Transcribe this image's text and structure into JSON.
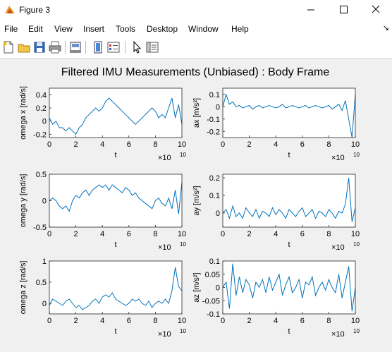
{
  "window": {
    "title": "Figure 3"
  },
  "menu": [
    "File",
    "Edit",
    "View",
    "Insert",
    "Tools",
    "Desktop",
    "Window",
    "Help"
  ],
  "toolbar": {
    "icons": [
      "new-figure-icon",
      "open-file-icon",
      "save-icon",
      "print-icon",
      "print-preview-icon",
      "link-plot-icon",
      "insert-legend-icon",
      "edit-plot-arrow-icon",
      "property-inspector-icon"
    ]
  },
  "colors": {
    "line": "#0072bd",
    "axes_bg": "#ffffff",
    "figure_bg": "#f0f0f0"
  },
  "figure": {
    "title": "Filtered IMU Measurements (Unbiased) : Body Frame"
  },
  "chart_data": [
    {
      "type": "line",
      "xlabel": "t",
      "ylabel": "omega x [rad/s]",
      "xlim": [
        0,
        100000000000
      ],
      "ylim": [
        -0.25,
        0.5
      ],
      "xticks": [
        "0",
        "2",
        "4",
        "6",
        "8",
        "10"
      ],
      "yticks": [
        "-0.2",
        "0",
        "0.2",
        "0.4"
      ],
      "ytick_values": [
        -0.2,
        0,
        0.2,
        0.4
      ],
      "x_exponent": "×10",
      "x_exponent_power": "10",
      "x": [
        0,
        2500000000,
        5000000000,
        7500000000,
        10000000000,
        12500000000,
        15000000000,
        17500000000,
        20000000000,
        22500000000,
        25000000000,
        27500000000,
        30000000000,
        32500000000,
        35000000000,
        37500000000,
        40000000000,
        42500000000,
        45000000000,
        47500000000,
        50000000000,
        52500000000,
        55000000000,
        57500000000,
        60000000000,
        62500000000,
        65000000000,
        67500000000,
        70000000000,
        72500000000,
        75000000000,
        77500000000,
        80000000000,
        82500000000,
        85000000000,
        87500000000,
        90000000000,
        92500000000,
        95000000000,
        97500000000,
        100000000000
      ],
      "y": [
        0.05,
        -0.05,
        0.0,
        -0.1,
        -0.1,
        -0.15,
        -0.1,
        -0.15,
        -0.2,
        -0.1,
        -0.05,
        0.05,
        0.1,
        0.15,
        0.2,
        0.15,
        0.2,
        0.3,
        0.35,
        0.3,
        0.25,
        0.2,
        0.15,
        0.1,
        0.05,
        0.0,
        -0.05,
        0.0,
        0.05,
        0.1,
        0.15,
        0.2,
        0.15,
        0.05,
        0.1,
        0.05,
        0.2,
        0.35,
        0.05,
        0.25,
        -0.05
      ]
    },
    {
      "type": "line",
      "xlabel": "t",
      "ylabel": "ax [m/s²]",
      "xlim": [
        0,
        100000000000
      ],
      "ylim": [
        -0.25,
        0.15
      ],
      "xticks": [
        "0",
        "2",
        "4",
        "6",
        "8",
        "10"
      ],
      "yticks": [
        "-0.2",
        "-0.1",
        "0",
        "0.1"
      ],
      "ytick_values": [
        -0.2,
        -0.1,
        0,
        0.1
      ],
      "x_exponent": "×10",
      "x_exponent_power": "10",
      "x": [
        0,
        2500000000,
        5000000000,
        7500000000,
        10000000000,
        12500000000,
        15000000000,
        17500000000,
        20000000000,
        22500000000,
        25000000000,
        27500000000,
        30000000000,
        32500000000,
        35000000000,
        37500000000,
        40000000000,
        42500000000,
        45000000000,
        47500000000,
        50000000000,
        52500000000,
        55000000000,
        57500000000,
        60000000000,
        62500000000,
        65000000000,
        67500000000,
        70000000000,
        72500000000,
        75000000000,
        77500000000,
        80000000000,
        82500000000,
        85000000000,
        87500000000,
        90000000000,
        92500000000,
        95000000000,
        97500000000,
        100000000000
      ],
      "y": [
        0.0,
        0.1,
        0.02,
        0.04,
        0.0,
        0.01,
        -0.01,
        0.0,
        0.01,
        -0.02,
        0.0,
        0.01,
        -0.01,
        0.0,
        0.01,
        0.0,
        -0.01,
        0.0,
        0.02,
        -0.01,
        0.0,
        0.01,
        0.0,
        -0.01,
        0.0,
        0.01,
        -0.01,
        0.0,
        0.01,
        0.0,
        -0.01,
        0.0,
        0.01,
        -0.02,
        0.0,
        0.02,
        -0.03,
        0.05,
        -0.1,
        -0.25,
        0.1
      ]
    },
    {
      "type": "line",
      "xlabel": "t",
      "ylabel": "omega y [rad/s]",
      "xlim": [
        0,
        100000000000
      ],
      "ylim": [
        -0.5,
        0.5
      ],
      "xticks": [
        "0",
        "2",
        "4",
        "6",
        "8",
        "10"
      ],
      "yticks": [
        "-0.5",
        "0",
        "0.5"
      ],
      "ytick_values": [
        -0.5,
        0,
        0.5
      ],
      "x_exponent": "×10",
      "x_exponent_power": "10",
      "x": [
        0,
        2500000000,
        5000000000,
        7500000000,
        10000000000,
        12500000000,
        15000000000,
        17500000000,
        20000000000,
        22500000000,
        25000000000,
        27500000000,
        30000000000,
        32500000000,
        35000000000,
        37500000000,
        40000000000,
        42500000000,
        45000000000,
        47500000000,
        50000000000,
        52500000000,
        55000000000,
        57500000000,
        60000000000,
        62500000000,
        65000000000,
        67500000000,
        70000000000,
        72500000000,
        75000000000,
        77500000000,
        80000000000,
        82500000000,
        85000000000,
        87500000000,
        90000000000,
        92500000000,
        95000000000,
        97500000000,
        100000000000
      ],
      "y": [
        0.0,
        0.05,
        0.0,
        -0.1,
        -0.15,
        -0.1,
        -0.2,
        0.0,
        0.1,
        0.05,
        0.15,
        0.2,
        0.1,
        0.2,
        0.25,
        0.3,
        0.25,
        0.3,
        0.2,
        0.3,
        0.25,
        0.2,
        0.15,
        0.25,
        0.2,
        0.1,
        0.15,
        0.05,
        0.0,
        -0.05,
        -0.1,
        -0.15,
        0.0,
        0.05,
        -0.05,
        -0.1,
        0.05,
        -0.15,
        0.2,
        -0.25,
        0.35
      ]
    },
    {
      "type": "line",
      "xlabel": "t",
      "ylabel": "ay [m/s²]",
      "xlim": [
        0,
        100000000000
      ],
      "ylim": [
        -0.08,
        0.22
      ],
      "xticks": [
        "0",
        "2",
        "4",
        "6",
        "8",
        "10"
      ],
      "yticks": [
        "0",
        "0.1",
        "0.2"
      ],
      "ytick_values": [
        0,
        0.1,
        0.2
      ],
      "x_exponent": "×10",
      "x_exponent_power": "10",
      "x": [
        0,
        2500000000,
        5000000000,
        7500000000,
        10000000000,
        12500000000,
        15000000000,
        17500000000,
        20000000000,
        22500000000,
        25000000000,
        27500000000,
        30000000000,
        32500000000,
        35000000000,
        37500000000,
        40000000000,
        42500000000,
        45000000000,
        47500000000,
        50000000000,
        52500000000,
        55000000000,
        57500000000,
        60000000000,
        62500000000,
        65000000000,
        67500000000,
        70000000000,
        72500000000,
        75000000000,
        77500000000,
        80000000000,
        82500000000,
        85000000000,
        87500000000,
        90000000000,
        92500000000,
        95000000000,
        97500000000,
        100000000000
      ],
      "y": [
        0.0,
        0.02,
        -0.03,
        0.04,
        -0.02,
        0.0,
        -0.03,
        0.03,
        0.0,
        -0.02,
        0.02,
        -0.03,
        0.01,
        0.0,
        -0.02,
        0.03,
        -0.01,
        0.02,
        0.0,
        -0.03,
        0.02,
        0.0,
        -0.02,
        0.01,
        0.03,
        -0.02,
        0.0,
        0.02,
        -0.03,
        0.01,
        0.0,
        -0.02,
        0.02,
        0.0,
        -0.03,
        0.01,
        0.0,
        0.05,
        0.2,
        -0.05,
        0.03
      ]
    },
    {
      "type": "line",
      "xlabel": "t",
      "ylabel": "omega z [rad/s]",
      "xlim": [
        0,
        100000000000
      ],
      "ylim": [
        -0.25,
        1.0
      ],
      "xticks": [
        "0",
        "2",
        "4",
        "6",
        "8",
        "10"
      ],
      "yticks": [
        "0",
        "0.5",
        "1"
      ],
      "ytick_values": [
        0,
        0.5,
        1
      ],
      "x_exponent": "×10",
      "x_exponent_power": "10",
      "x": [
        0,
        2500000000,
        5000000000,
        7500000000,
        10000000000,
        12500000000,
        15000000000,
        17500000000,
        20000000000,
        22500000000,
        25000000000,
        27500000000,
        30000000000,
        32500000000,
        35000000000,
        37500000000,
        40000000000,
        42500000000,
        45000000000,
        47500000000,
        50000000000,
        52500000000,
        55000000000,
        57500000000,
        60000000000,
        62500000000,
        65000000000,
        67500000000,
        70000000000,
        72500000000,
        75000000000,
        77500000000,
        80000000000,
        82500000000,
        85000000000,
        87500000000,
        90000000000,
        92500000000,
        95000000000,
        97500000000,
        100000000000
      ],
      "y": [
        -0.05,
        0.1,
        0.05,
        0.0,
        -0.05,
        0.05,
        0.1,
        0.0,
        -0.1,
        -0.05,
        -0.15,
        -0.1,
        -0.05,
        0.05,
        0.1,
        0.0,
        0.15,
        0.2,
        0.15,
        0.25,
        0.1,
        0.05,
        0.0,
        -0.05,
        0.0,
        0.1,
        0.05,
        0.1,
        0.0,
        -0.05,
        0.05,
        -0.1,
        0.0,
        0.05,
        0.0,
        0.1,
        0.0,
        0.3,
        0.85,
        0.4,
        0.3
      ]
    },
    {
      "type": "line",
      "xlabel": "t",
      "ylabel": "az [m/s²]",
      "xlim": [
        0,
        100000000000
      ],
      "ylim": [
        -0.1,
        0.1
      ],
      "xticks": [
        "0",
        "2",
        "4",
        "6",
        "8",
        "10"
      ],
      "yticks": [
        "-0.1",
        "-0.05",
        "0",
        "0.05",
        "0.1"
      ],
      "ytick_values": [
        -0.1,
        -0.05,
        0,
        0.05,
        0.1
      ],
      "x_exponent": "×10",
      "x_exponent_power": "10",
      "x": [
        0,
        2500000000,
        5000000000,
        7500000000,
        10000000000,
        12500000000,
        15000000000,
        17500000000,
        20000000000,
        22500000000,
        25000000000,
        27500000000,
        30000000000,
        32500000000,
        35000000000,
        37500000000,
        40000000000,
        42500000000,
        45000000000,
        47500000000,
        50000000000,
        52500000000,
        55000000000,
        57500000000,
        60000000000,
        62500000000,
        65000000000,
        67500000000,
        70000000000,
        72500000000,
        75000000000,
        77500000000,
        80000000000,
        82500000000,
        85000000000,
        87500000000,
        90000000000,
        92500000000,
        95000000000,
        97500000000,
        100000000000
      ],
      "y": [
        0.0,
        0.02,
        -0.08,
        0.09,
        -0.03,
        0.04,
        -0.02,
        0.03,
        0.01,
        -0.04,
        0.02,
        0.0,
        0.03,
        -0.02,
        0.04,
        -0.01,
        0.02,
        0.05,
        -0.03,
        0.01,
        0.04,
        -0.02,
        0.0,
        0.03,
        -0.04,
        0.02,
        0.01,
        0.04,
        -0.03,
        0.0,
        0.02,
        -0.01,
        0.03,
        0.0,
        -0.02,
        0.05,
        -0.04,
        0.02,
        0.08,
        -0.09,
        0.0
      ]
    }
  ]
}
